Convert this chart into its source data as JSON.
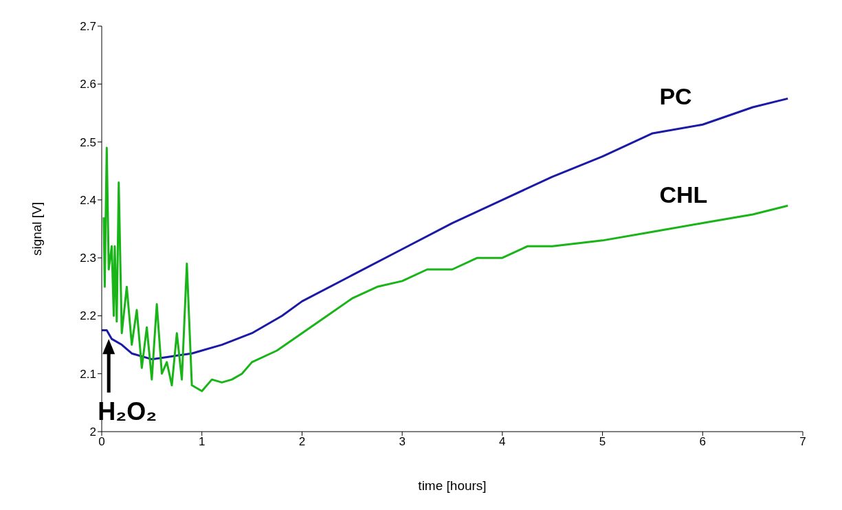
{
  "chart_data": {
    "type": "line",
    "xlabel": "time [hours]",
    "ylabel": "signal [V]",
    "xlim": [
      0,
      7
    ],
    "xticks": [
      0,
      1,
      2,
      3,
      4,
      5,
      6,
      7
    ],
    "ylim": [
      2,
      2.7
    ],
    "yticks": [
      2,
      2.1,
      2.2,
      2.3,
      2.4,
      2.5,
      2.6,
      2.7
    ],
    "marker": "none",
    "annotations": [
      {
        "text": "H₂O₂",
        "x": 0.07,
        "y": 2.16
      }
    ],
    "series": [
      {
        "name": "PC",
        "color": "#1a1aa6",
        "x": [
          0,
          0.05,
          0.1,
          0.2,
          0.3,
          0.5,
          0.7,
          0.9,
          1.0,
          1.2,
          1.5,
          1.8,
          2,
          2.5,
          3,
          3.5,
          4,
          4.5,
          5,
          5.5,
          6,
          6.5,
          6.85
        ],
        "values": [
          2.175,
          2.175,
          2.16,
          2.15,
          2.135,
          2.125,
          2.13,
          2.135,
          2.14,
          2.15,
          2.17,
          2.2,
          2.225,
          2.27,
          2.315,
          2.36,
          2.4,
          2.44,
          2.475,
          2.515,
          2.53,
          2.56,
          2.575
        ]
      },
      {
        "name": "CHL",
        "color": "#18b418",
        "x": [
          0.02,
          0.03,
          0.05,
          0.07,
          0.1,
          0.12,
          0.13,
          0.15,
          0.17,
          0.2,
          0.25,
          0.3,
          0.35,
          0.4,
          0.45,
          0.5,
          0.55,
          0.6,
          0.65,
          0.7,
          0.75,
          0.8,
          0.85,
          0.9,
          1.0,
          1.1,
          1.2,
          1.3,
          1.4,
          1.5,
          1.75,
          2,
          2.25,
          2.5,
          2.75,
          3,
          3.25,
          3.5,
          3.75,
          4,
          4.25,
          4.5,
          4.75,
          5,
          5.5,
          6,
          6.5,
          6.85
        ],
        "values": [
          2.37,
          2.25,
          2.49,
          2.28,
          2.32,
          2.2,
          2.32,
          2.19,
          2.43,
          2.17,
          2.25,
          2.15,
          2.21,
          2.11,
          2.18,
          2.09,
          2.22,
          2.1,
          2.12,
          2.08,
          2.17,
          2.09,
          2.29,
          2.08,
          2.07,
          2.09,
          2.085,
          2.09,
          2.1,
          2.12,
          2.14,
          2.17,
          2.2,
          2.23,
          2.25,
          2.26,
          2.28,
          2.28,
          2.3,
          2.3,
          2.32,
          2.32,
          2.325,
          2.33,
          2.345,
          2.36,
          2.375,
          2.39
        ]
      }
    ]
  }
}
